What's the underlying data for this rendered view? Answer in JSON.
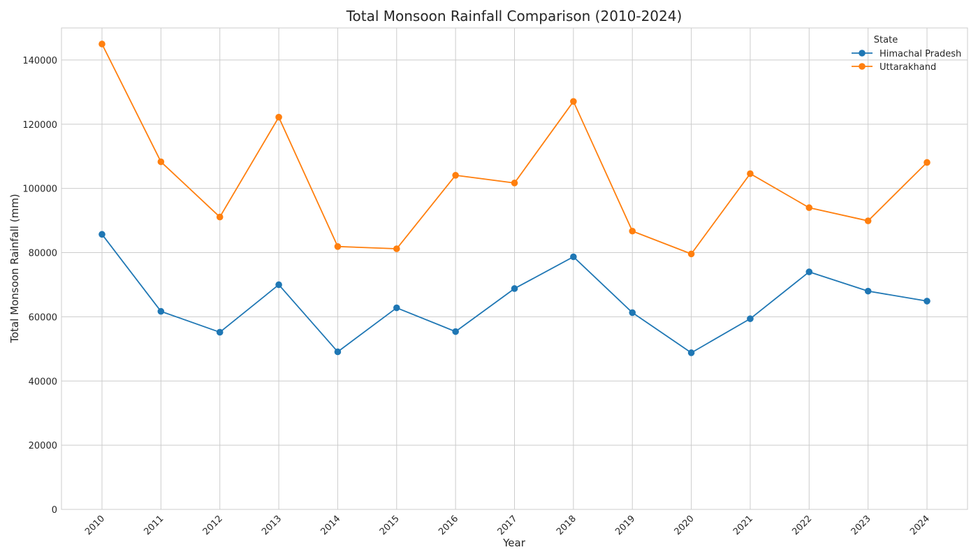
{
  "chart_data": {
    "type": "line",
    "title": "Total Monsoon Rainfall Comparison (2010-2024)",
    "xlabel": "Year",
    "ylabel": "Total Monsoon Rainfall (mm)",
    "x": [
      "2010",
      "2011",
      "2012",
      "2013",
      "2014",
      "2015",
      "2016",
      "2017",
      "2018",
      "2019",
      "2020",
      "2021",
      "2022",
      "2023",
      "2024"
    ],
    "ylim": [
      0,
      150000
    ],
    "yticks": [
      0,
      20000,
      40000,
      60000,
      80000,
      100000,
      120000,
      140000
    ],
    "ytick_labels": [
      "0",
      "20000",
      "40000",
      "60000",
      "80000",
      "100000",
      "120000",
      "140000"
    ],
    "grid": true,
    "legend": {
      "title": "State",
      "placement": "top-right"
    },
    "series": [
      {
        "name": "Himachal Pradesh",
        "color": "#1f77b4",
        "values": [
          85700,
          61700,
          55200,
          70000,
          49100,
          62800,
          55400,
          68800,
          78700,
          61300,
          48800,
          59400,
          74000,
          68000,
          64900
        ]
      },
      {
        "name": "Uttarakhand",
        "color": "#ff7f0e",
        "values": [
          145000,
          108300,
          91100,
          122200,
          81900,
          81200,
          104100,
          101700,
          127100,
          86700,
          79600,
          104600,
          94000,
          89900,
          108100
        ]
      }
    ]
  }
}
